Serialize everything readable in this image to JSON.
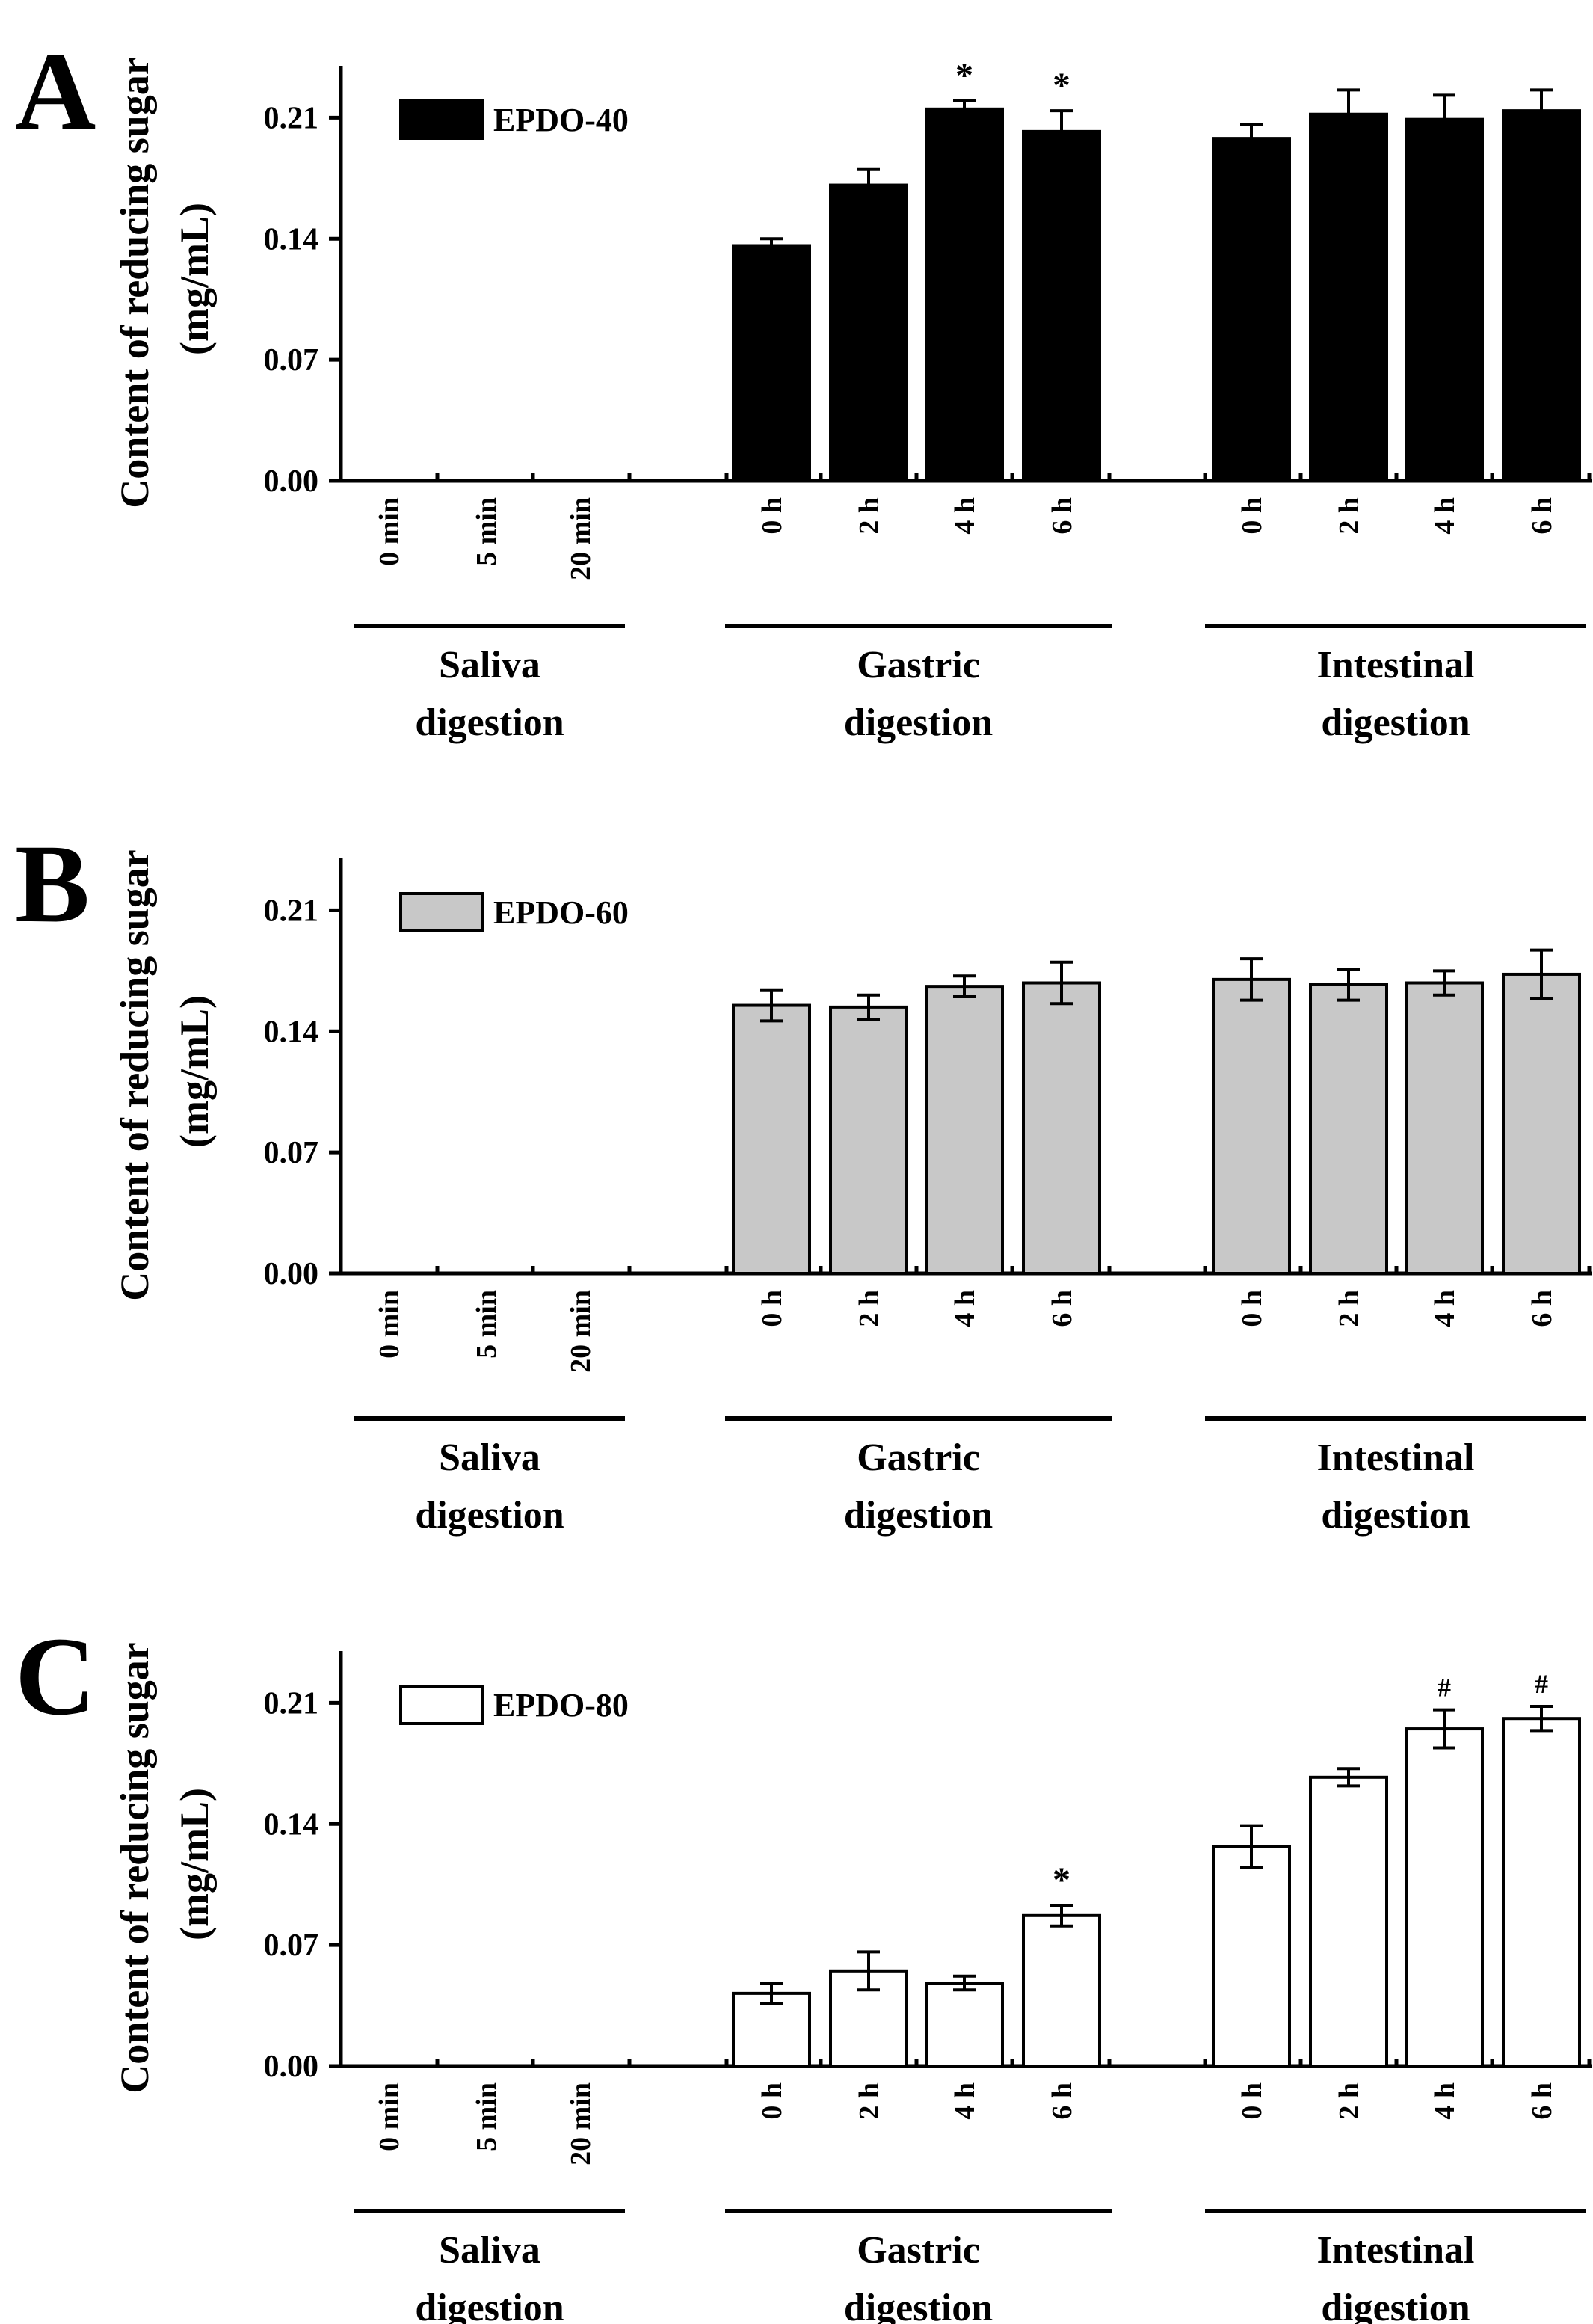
{
  "figure": {
    "ylabel_line1": "Content of reducing sugar",
    "ylabel_line2": "(mg/mL)",
    "colors": {
      "axis": "#000000",
      "background": "#ffffff"
    }
  },
  "chart_data": [
    {
      "panel_letter": "A",
      "type": "bar",
      "legend": "EPDO-40",
      "bar_color": "#000000",
      "ylim": [
        0,
        0.24
      ],
      "yticks": [
        "0.00",
        "0.07",
        "0.14",
        "0.21"
      ],
      "groups": [
        {
          "name_line1": "Saliva",
          "name_line2": "digestion",
          "bars": [
            {
              "label": "0 min",
              "value": 0,
              "err": 0,
              "mark": ""
            },
            {
              "label": "5 min",
              "value": 0,
              "err": 0,
              "mark": ""
            },
            {
              "label": "20 min",
              "value": 0,
              "err": 0,
              "mark": ""
            }
          ]
        },
        {
          "name_line1": "Gastric",
          "name_line2": "digestion",
          "bars": [
            {
              "label": "0 h",
              "value": 0.136,
              "err": 0.004,
              "mark": ""
            },
            {
              "label": "2 h",
              "value": 0.171,
              "err": 0.009,
              "mark": ""
            },
            {
              "label": "4 h",
              "value": 0.215,
              "err": 0.005,
              "mark": "*"
            },
            {
              "label": "6 h",
              "value": 0.202,
              "err": 0.012,
              "mark": "*"
            }
          ]
        },
        {
          "name_line1": "Intestinal",
          "name_line2": "digestion",
          "bars": [
            {
              "label": "0 h",
              "value": 0.198,
              "err": 0.008,
              "mark": ""
            },
            {
              "label": "2 h",
              "value": 0.212,
              "err": 0.014,
              "mark": ""
            },
            {
              "label": "4 h",
              "value": 0.209,
              "err": 0.014,
              "mark": ""
            },
            {
              "label": "6 h",
              "value": 0.214,
              "err": 0.012,
              "mark": ""
            }
          ]
        }
      ]
    },
    {
      "panel_letter": "B",
      "type": "bar",
      "legend": "EPDO-60",
      "bar_color": "#c8c8c8",
      "ylim": [
        0,
        0.24
      ],
      "yticks": [
        "0.00",
        "0.07",
        "0.14",
        "0.21"
      ],
      "groups": [
        {
          "name_line1": "Saliva",
          "name_line2": "digestion",
          "bars": [
            {
              "label": "0 min",
              "value": 0,
              "err": 0,
              "mark": ""
            },
            {
              "label": "5 min",
              "value": 0,
              "err": 0,
              "mark": ""
            },
            {
              "label": "20 min",
              "value": 0,
              "err": 0,
              "mark": ""
            }
          ]
        },
        {
          "name_line1": "Gastric",
          "name_line2": "digestion",
          "bars": [
            {
              "label": "0 h",
              "value": 0.155,
              "err": 0.009,
              "mark": ""
            },
            {
              "label": "2 h",
              "value": 0.154,
              "err": 0.007,
              "mark": ""
            },
            {
              "label": "4 h",
              "value": 0.166,
              "err": 0.006,
              "mark": ""
            },
            {
              "label": "6 h",
              "value": 0.168,
              "err": 0.012,
              "mark": ""
            }
          ]
        },
        {
          "name_line1": "Intestinal",
          "name_line2": "digestion",
          "bars": [
            {
              "label": "0 h",
              "value": 0.17,
              "err": 0.012,
              "mark": ""
            },
            {
              "label": "2 h",
              "value": 0.167,
              "err": 0.009,
              "mark": ""
            },
            {
              "label": "4 h",
              "value": 0.168,
              "err": 0.007,
              "mark": ""
            },
            {
              "label": "6 h",
              "value": 0.173,
              "err": 0.014,
              "mark": ""
            }
          ]
        }
      ]
    },
    {
      "panel_letter": "C",
      "type": "bar",
      "legend": "EPDO-80",
      "bar_color": "#ffffff",
      "ylim": [
        0,
        0.24
      ],
      "yticks": [
        "0.00",
        "0.07",
        "0.14",
        "0.21"
      ],
      "groups": [
        {
          "name_line1": "Saliva",
          "name_line2": "digestion",
          "bars": [
            {
              "label": "0 min",
              "value": 0,
              "err": 0,
              "mark": ""
            },
            {
              "label": "5 min",
              "value": 0,
              "err": 0,
              "mark": ""
            },
            {
              "label": "20 min",
              "value": 0,
              "err": 0,
              "mark": ""
            }
          ]
        },
        {
          "name_line1": "Gastric",
          "name_line2": "digestion",
          "bars": [
            {
              "label": "0 h",
              "value": 0.042,
              "err": 0.006,
              "mark": ""
            },
            {
              "label": "2 h",
              "value": 0.055,
              "err": 0.011,
              "mark": ""
            },
            {
              "label": "4 h",
              "value": 0.048,
              "err": 0.004,
              "mark": ""
            },
            {
              "label": "6 h",
              "value": 0.087,
              "err": 0.006,
              "mark": "*"
            }
          ]
        },
        {
          "name_line1": "Intestinal",
          "name_line2": "digestion",
          "bars": [
            {
              "label": "0 h",
              "value": 0.127,
              "err": 0.012,
              "mark": ""
            },
            {
              "label": "2 h",
              "value": 0.167,
              "err": 0.005,
              "mark": ""
            },
            {
              "label": "4 h",
              "value": 0.195,
              "err": 0.011,
              "mark": "#"
            },
            {
              "label": "6 h",
              "value": 0.201,
              "err": 0.007,
              "mark": "#"
            }
          ]
        }
      ]
    }
  ]
}
